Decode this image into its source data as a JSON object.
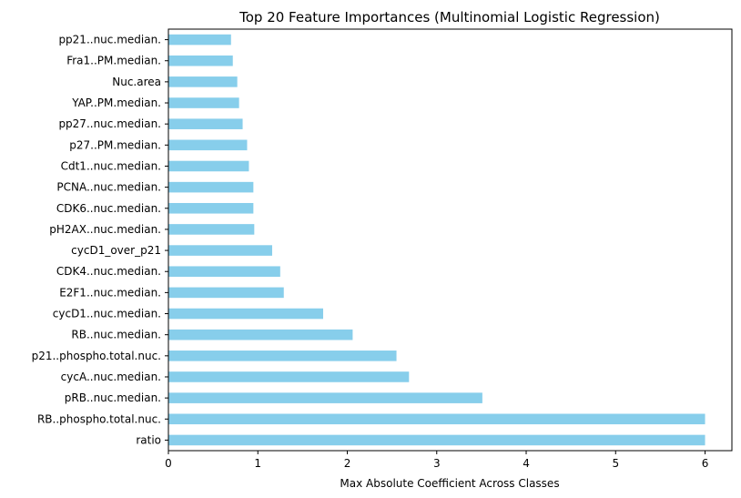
{
  "chart_data": {
    "type": "bar",
    "orientation": "horizontal",
    "title": "Top 20 Feature Importances (Multinomial Logistic Regression)",
    "xlabel": "Max Absolute Coefficient Across Classes",
    "ylabel": "",
    "xlim": [
      0,
      6.3
    ],
    "xticks": [
      "0",
      "1",
      "2",
      "3",
      "4",
      "5",
      "6"
    ],
    "grid": false,
    "bar_color": "#87ceeb",
    "categories": [
      "pp21..nuc.median.",
      "Fra1..PM.median.",
      "Nuc.area",
      "YAP..PM.median.",
      "pp27..nuc.median.",
      "p27..PM.median.",
      "Cdt1..nuc.median.",
      "PCNA..nuc.median.",
      "CDK6..nuc.median.",
      "pH2AX..nuc.median.",
      "cycD1_over_p21",
      "CDK4..nuc.median.",
      "E2F1..nuc.median.",
      "cycD1..nuc.median.",
      "RB..nuc.median.",
      "p21..phospho.total.nuc.",
      "cycA..nuc.median.",
      "pRB..nuc.median.",
      "RB..phospho.total.nuc.",
      "ratio"
    ],
    "values": [
      0.7,
      0.72,
      0.77,
      0.79,
      0.83,
      0.88,
      0.9,
      0.95,
      0.95,
      0.96,
      1.16,
      1.25,
      1.29,
      1.73,
      2.06,
      2.55,
      2.69,
      3.51,
      6.0,
      6.0
    ]
  }
}
